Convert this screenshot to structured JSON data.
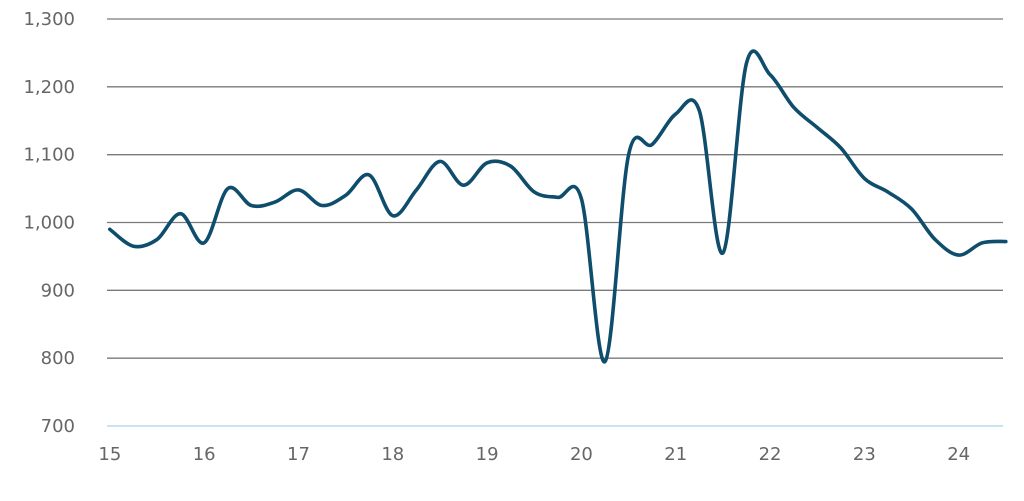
{
  "chart_data": {
    "type": "line",
    "title": "",
    "xlabel": "",
    "ylabel": "",
    "xlim": [
      14.97,
      24.47
    ],
    "ylim": [
      700,
      1300
    ],
    "x_ticks": [
      15,
      16,
      17,
      18,
      19,
      20,
      21,
      22,
      23,
      24
    ],
    "x_tick_labels": [
      "15",
      "16",
      "17",
      "18",
      "19",
      "20",
      "21",
      "22",
      "23",
      "24"
    ],
    "y_ticks": [
      700,
      800,
      900,
      1000,
      1100,
      1200,
      1300
    ],
    "y_tick_labels": [
      "700",
      "800",
      "900",
      "1,000",
      "1,100",
      "1,200",
      "1,300"
    ],
    "grid": true,
    "legend": "none",
    "colors": {
      "series": "#0e4d6c",
      "grid": "#7a7a7a",
      "baseline": "#a9d3e6",
      "text": "#666666"
    },
    "series": [
      {
        "x": [
          15.0,
          15.25,
          15.5,
          15.75,
          16.0,
          16.25,
          16.5,
          16.75,
          17.0,
          17.25,
          17.5,
          17.75,
          18.0,
          18.25,
          18.5,
          18.75,
          19.0,
          19.25,
          19.5,
          19.75,
          20.0,
          20.25,
          20.5,
          20.75,
          21.0,
          21.25,
          21.5,
          21.75,
          22.0,
          22.25,
          22.5,
          22.75,
          23.0,
          23.25,
          23.5,
          23.75,
          24.0,
          24.25,
          24.5
        ],
        "values": [
          990,
          965,
          975,
          1013,
          970,
          1050,
          1025,
          1030,
          1048,
          1025,
          1040,
          1070,
          1010,
          1048,
          1090,
          1055,
          1088,
          1083,
          1045,
          1037,
          1035,
          795,
          1100,
          1115,
          1160,
          1165,
          955,
          1235,
          1218,
          1170,
          1140,
          1110,
          1065,
          1045,
          1020,
          975,
          952,
          970,
          972
        ]
      }
    ]
  }
}
